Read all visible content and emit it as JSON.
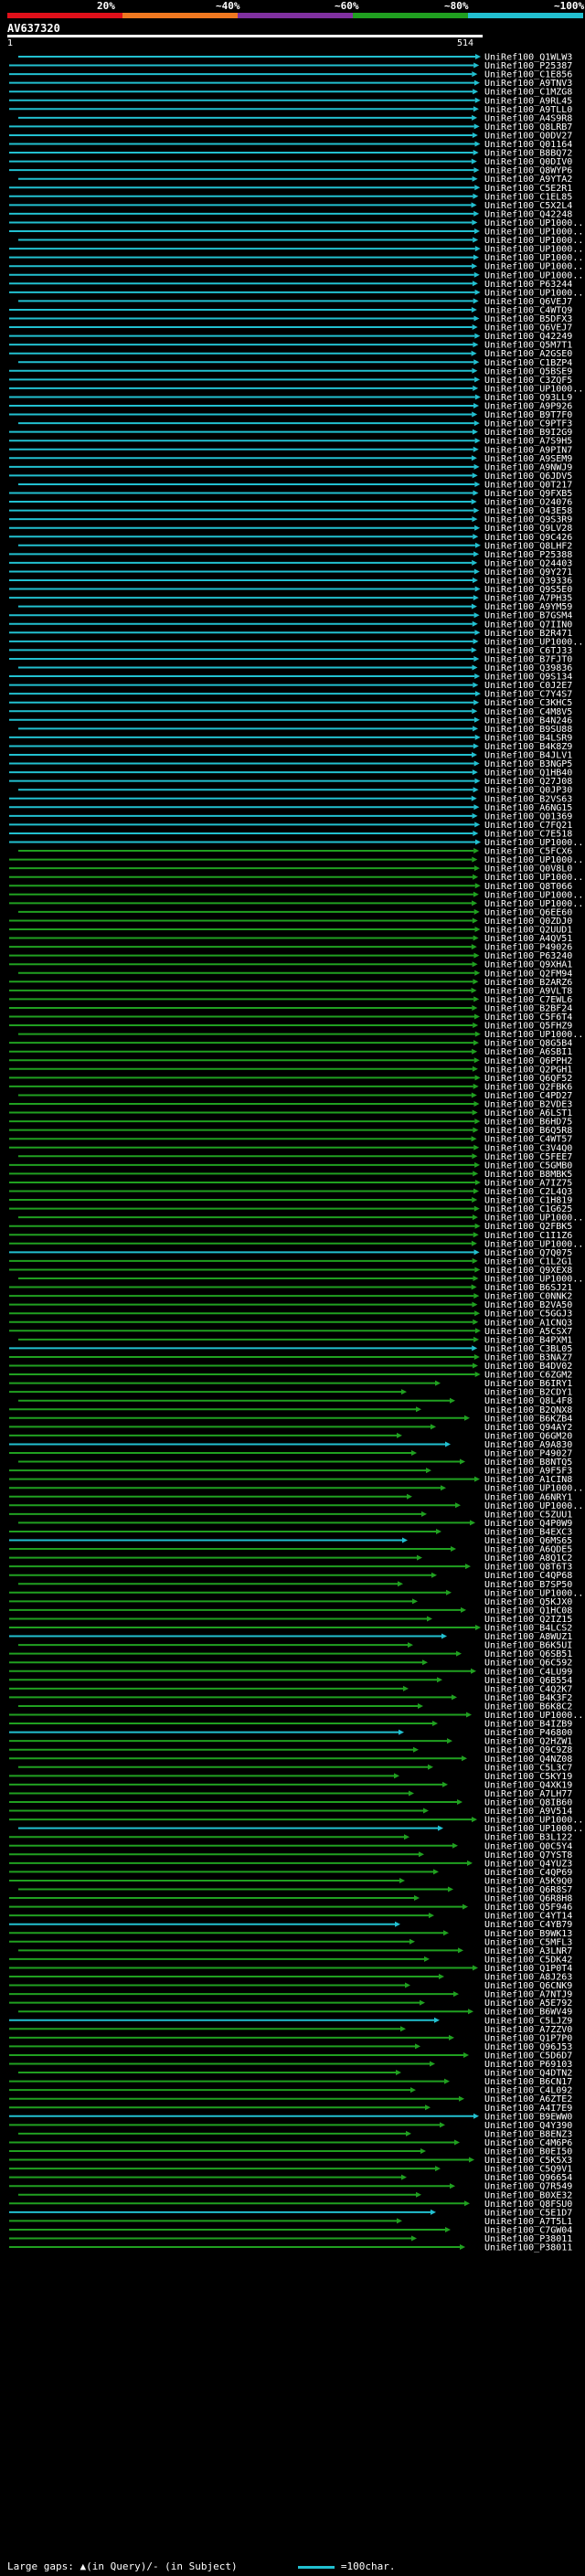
{
  "legend": {
    "colors": [
      "#e0101a",
      "#f07820",
      "#8030a0",
      "#20a020",
      "#22c0d0"
    ],
    "labels": [
      "20%",
      "~40%",
      "~60%",
      "~80%",
      "~100%"
    ]
  },
  "query": {
    "name": "AV637320",
    "start": "1",
    "end": "514"
  },
  "footer": {
    "text": "Large gaps: ▲(in Query)/- (in Subject)",
    "scale": "=100char."
  },
  "hits": [
    "UniRef100_Q1WLW3",
    "UniRef100_P25387",
    "UniRef100_C1E856",
    "UniRef100_A9TNV3",
    "UniRef100_C1MZG8",
    "UniRef100_A9RL45",
    "UniRef100_A9TLL0",
    "UniRef100_A4S9R8",
    "UniRef100_Q8LRB7",
    "UniRef100_Q0DV27",
    "UniRef100_Q01164",
    "UniRef100_B8BQ72",
    "UniRef100_Q0DIV0",
    "UniRef100_Q8WYP6",
    "UniRef100_A9YTA2",
    "UniRef100_C5E2R1",
    "UniRef100_C1EL85",
    "UniRef100_C5X2L4",
    "UniRef100_Q42248",
    "UniRef100_UP1000..",
    "UniRef100_UP1000..",
    "UniRef100_UP1000..",
    "UniRef100_UP1000..",
    "UniRef100_UP1000..",
    "UniRef100_UP1000..",
    "UniRef100_UP1000..",
    "UniRef100_P63244",
    "UniRef100_UP1000..",
    "UniRef100_Q6VEJ7",
    "UniRef100_C4WTQ9",
    "UniRef100_B5DFX3",
    "UniRef100_Q6VEJ7",
    "UniRef100_Q42249",
    "UniRef100_Q5M7T1",
    "UniRef100_A2GSE0",
    "UniRef100_C1BZP4",
    "UniRef100_Q5BSE9",
    "UniRef100_C3ZQF5",
    "UniRef100_UP1000..",
    "UniRef100_Q93LL9",
    "UniRef100_A9P926",
    "UniRef100_B9T7F0",
    "UniRef100_C9PTF3",
    "UniRef100_B9I2G9",
    "UniRef100_A7S9H5",
    "UniRef100_A9PIN7",
    "UniRef100_A9SEM9",
    "UniRef100_A9NWJ9",
    "UniRef100_Q6JDV5",
    "UniRef100_Q0T217",
    "UniRef100_Q9FXB5",
    "UniRef100_O24076",
    "UniRef100_O43E58",
    "UniRef100_Q9S3R9",
    "UniRef100_Q9LV28",
    "UniRef100_Q9C426",
    "UniRef100_Q8LHF2",
    "UniRef100_P25388",
    "UniRef100_Q24403",
    "UniRef100_Q9Y271",
    "UniRef100_Q39336",
    "UniRef100_Q9S5E0",
    "UniRef100_A7PH35",
    "UniRef100_A9YM59",
    "UniRef100_B7GSM4",
    "UniRef100_Q7IIN0",
    "UniRef100_B2R471",
    "UniRef100_UP1000..",
    "UniRef100_C6TJ33",
    "UniRef100_B7FJT0",
    "UniRef100_Q39836",
    "UniRef100_Q9S134",
    "UniRef100_C0J2E7",
    "UniRef100_C7Y4S7",
    "UniRef100_C3KHC5",
    "UniRef100_C4M8V5",
    "UniRef100_B4N246",
    "UniRef100_B9SU88",
    "UniRef100_B4LSR9",
    "UniRef100_B4K8Z9",
    "UniRef100_B4JLV1",
    "UniRef100_B3NGP5",
    "UniRef100_Q1HB40",
    "UniRef100_Q27J08",
    "UniRef100_Q0JP30",
    "UniRef100_B2VS63",
    "UniRef100_A6NG15",
    "UniRef100_Q01369",
    "UniRef100_C7FQ21",
    "UniRef100_C7E518",
    "UniRef100_UP1000..",
    "UniRef100_C5FCX6",
    "UniRef100_UP1000..",
    "UniRef100_Q0V8L0",
    "UniRef100_UP1000..",
    "UniRef100_Q8T066",
    "UniRef100_UP1000..",
    "UniRef100_UP1000..",
    "UniRef100_Q6EE60",
    "UniRef100_Q0ZDJ0",
    "UniRef100_Q2UUD1",
    "UniRef100_A4QV51",
    "UniRef100_P49026",
    "UniRef100_P63240",
    "UniRef100_Q9XHA1",
    "UniRef100_Q2FM94",
    "UniRef100_B2ARZ6",
    "UniRef100_A9VLT8",
    "UniRef100_C7EWL6",
    "UniRef100_B2BF24",
    "UniRef100_C5F6T4",
    "UniRef100_Q5FHZ9",
    "UniRef100_UP1000..",
    "UniRef100_Q8G5B4",
    "UniRef100_A6SBI1",
    "UniRef100_Q6PPH2",
    "UniRef100_Q2PGH1",
    "UniRef100_Q6QF52",
    "UniRef100_Q2FBK6",
    "UniRef100_C4PD27",
    "UniRef100_B2VDE3",
    "UniRef100_A6LST1",
    "UniRef100_B6HD75",
    "UniRef100_B6Q5R8",
    "UniRef100_C4WT57",
    "UniRef100_C3V4Q0",
    "UniRef100_C5FEE7",
    "UniRef100_C5GMB0",
    "UniRef100_B8MBK5",
    "UniRef100_A7IZ75",
    "UniRef100_C2L4Q3",
    "UniRef100_C1H819",
    "UniRef100_C1G625",
    "UniRef100_UP1000..",
    "UniRef100_Q2FBK5",
    "UniRef100_C1I1Z6",
    "UniRef100_UP1000..",
    "UniRef100_Q7Q075",
    "UniRef100_C1L2G1",
    "UniRef100_Q9XEX8",
    "UniRef100_UP1000..",
    "UniRef100_B6SJ21",
    "UniRef100_C0NNK2",
    "UniRef100_B2VA50",
    "UniRef100_C5GGJ3",
    "UniRef100_A1CNQ3",
    "UniRef100_A5CSX7",
    "UniRef100_B4PXM1",
    "UniRef100_C3BL05",
    "UniRef100_B3NAZ7",
    "UniRef100_B4DV02",
    "UniRef100_C6ZGM2",
    "UniRef100_B6IRY1",
    "UniRef100_B2CDY1",
    "UniRef100_Q8L4F8",
    "UniRef100_B2QNX8",
    "UniRef100_B6KZB4",
    "UniRef100_Q94AY2",
    "UniRef100_Q6GM20",
    "UniRef100_A9A830",
    "UniRef100_P49027",
    "UniRef100_B8NTQ5",
    "UniRef100_A9F5F3",
    "UniRef100_A1CIN8",
    "UniRef100_UP1000..",
    "UniRef100_A6NRY1",
    "UniRef100_UP1000..",
    "UniRef100_C5ZUU1",
    "UniRef100_Q4P0W9",
    "UniRef100_B4EXC3",
    "UniRef100_Q6MS65",
    "UniRef100_A6QDE5",
    "UniRef100_A8Q1C2",
    "UniRef100_Q8T6T3",
    "UniRef100_C4QP68",
    "UniRef100_B7SP50",
    "UniRef100_UP1000..",
    "UniRef100_Q5KJX0",
    "UniRef100_Q1HC08",
    "UniRef100_Q2IZ15",
    "UniRef100_B4LCS2",
    "UniRef100_A8WUZ1",
    "UniRef100_B6K5UI",
    "UniRef100_Q6SB51",
    "UniRef100_Q6C592",
    "UniRef100_C4LU99",
    "UniRef100_Q6B554",
    "UniRef100_C4Q2K7",
    "UniRef100_B4K3F2",
    "UniRef100_B6K8C2",
    "UniRef100_UP1000..",
    "UniRef100_B4IZB9",
    "UniRef100_P46800",
    "UniRef100_Q2HZW1",
    "UniRef100_Q9C9Z8",
    "UniRef100_Q4NZ08",
    "UniRef100_C5L3C7",
    "UniRef100_C5KY19",
    "UniRef100_Q4XK19",
    "UniRef100_A7LH77",
    "UniRef100_Q8IB60",
    "UniRef100_A9V514",
    "UniRef100_UP1000..",
    "UniRef100_UP1000..",
    "UniRef100_B3L122",
    "UniRef100_Q0C5Y4",
    "UniRef100_Q7YST8",
    "UniRef100_Q4YUZ3",
    "UniRef100_C4QP69",
    "UniRef100_A5K9Q0",
    "UniRef100_Q6R8S7",
    "UniRef100_Q6R8H8",
    "UniRef100_Q5F946",
    "UniRef100_C4YT14",
    "UniRef100_C4YB79",
    "UniRef100_B9WK13",
    "UniRef100_C5MFL3",
    "UniRef100_A3LNR7",
    "UniRef100_C5DK42",
    "UniRef100_Q1P0T4",
    "UniRef100_A8J263",
    "UniRef100_Q6CNK9",
    "UniRef100_A7NTJ9",
    "UniRef100_A5E792",
    "UniRef100_B6WV49",
    "UniRef100_C5LJZ9",
    "UniRef100_A7ZZV0",
    "UniRef100_Q1P7P0",
    "UniRef100_Q96J53",
    "UniRef100_C5D6D7",
    "UniRef100_P69103",
    "UniRef100_Q4DTN2",
    "UniRef100_B6CN17",
    "UniRef100_C4L092",
    "UniRef100_A6ZTE2",
    "UniRef100_A4I7E9",
    "UniRef100_B9EWW0",
    "UniRef100_Q4Y390",
    "UniRef100_B8ENZ3",
    "UniRef100_C4M6P6",
    "UniRef100_B0EI50",
    "UniRef100_C5K5X3",
    "UniRef100_C5Q9V1",
    "UniRef100_Q96654",
    "UniRef100_Q7R549",
    "UniRef100_B0XE32",
    "UniRef100_Q8FSU0",
    "UniRef100_C5E1D7",
    "UniRef100_A7T5L1",
    "UniRef100_C7GW04",
    "UniRef100_P38011",
    "UniRef100_P38011"
  ]
}
